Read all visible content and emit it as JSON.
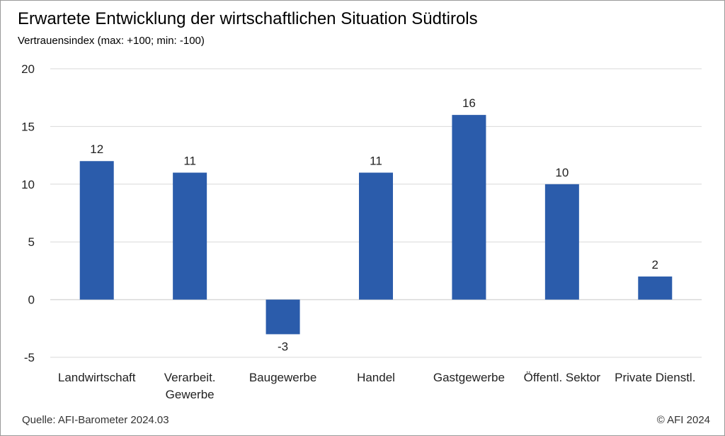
{
  "title": "Erwartete Entwicklung der wirtschaftlichen Situation Südtirols",
  "subtitle": "Vertrauensindex  (max: +100;  min: -100)",
  "footer": {
    "source": "Quelle: AFI-Barometer 2024.03",
    "copyright": "© AFI 2024"
  },
  "colors": {
    "bar": "#2b5cab",
    "grid": "#d9d9d9"
  },
  "chart_data": {
    "type": "bar",
    "categories": [
      [
        "Landwirtschaft"
      ],
      [
        "Verarbeit.",
        "Gewerbe"
      ],
      [
        "Baugewerbe"
      ],
      [
        "Handel"
      ],
      [
        "Gastgewerbe"
      ],
      [
        "Öffentl. Sektor"
      ],
      [
        "Private Dienstl."
      ]
    ],
    "values": [
      12,
      11,
      -3,
      11,
      16,
      10,
      2
    ],
    "value_labels": [
      "12",
      "11",
      "-3",
      "11",
      "16",
      "10",
      "2"
    ],
    "ylim": [
      -5,
      20
    ],
    "yticks": [
      20,
      15,
      10,
      5,
      0,
      -5
    ],
    "ytick_labels": [
      "20",
      "15",
      "10",
      "5",
      "0",
      "-5"
    ],
    "grid": true
  }
}
